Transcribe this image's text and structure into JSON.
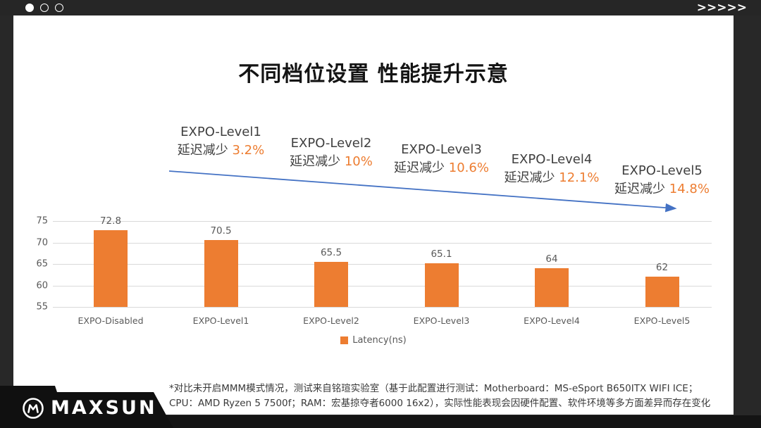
{
  "window": {
    "dots_total": 3,
    "active_dot": 1,
    "chevrons": ">>>>>"
  },
  "slide": {
    "title": "不同档位设置 性能提升示意",
    "footnote_line1": "*对比未开启MMM模式情况，测试来自铭瑄实验室（基于此配置进行测试：Motherboard：MS-eSport B650ITX WIFI ICE；",
    "footnote_line2": "CPU：AMD Ryzen 5 7500f；RAM：宏基掠夺者6000 16x2），实际性能表现会因硬件配置、软件环境等多方面差异而存在变化",
    "brand": "MAXSUN"
  },
  "chart_data": {
    "type": "bar",
    "title": "不同档位设置 性能提升示意",
    "categories": [
      "EXPO-Disabled",
      "EXPO-Level1",
      "EXPO-Level2",
      "EXPO-Level3",
      "EXPO-Level4",
      "EXPO-Level5"
    ],
    "values": [
      72.8,
      70.5,
      65.5,
      65.1,
      64,
      62
    ],
    "series_name": "Latency(ns)",
    "xlabel": "",
    "ylabel": "",
    "ylim": [
      55,
      75
    ],
    "yticks": [
      55,
      60,
      65,
      70,
      75
    ],
    "grid": true,
    "legend_position": "bottom",
    "bar_color": "#ED7D31",
    "annotations": [
      {
        "label": "EXPO-Level1",
        "text": "延迟减少",
        "percent": "3.2%"
      },
      {
        "label": "EXPO-Level2",
        "text": "延迟减少",
        "percent": "10%"
      },
      {
        "label": "EXPO-Level3",
        "text": "延迟减少",
        "percent": "10.6%"
      },
      {
        "label": "EXPO-Level4",
        "text": "延迟减少",
        "percent": "12.1%"
      },
      {
        "label": "EXPO-Level5",
        "text": "延迟减少",
        "percent": "14.8%"
      }
    ],
    "trend_arrow": {
      "present": true,
      "color": "#4472C4",
      "direction": "down-right"
    }
  },
  "colors": {
    "accent_orange": "#ED7D31",
    "arrow_blue": "#4472C4",
    "frame_dark": "#282828",
    "banner_black": "#101010",
    "gridline": "#D9D9D9",
    "axis_text": "#595959",
    "title_text": "#141414"
  }
}
